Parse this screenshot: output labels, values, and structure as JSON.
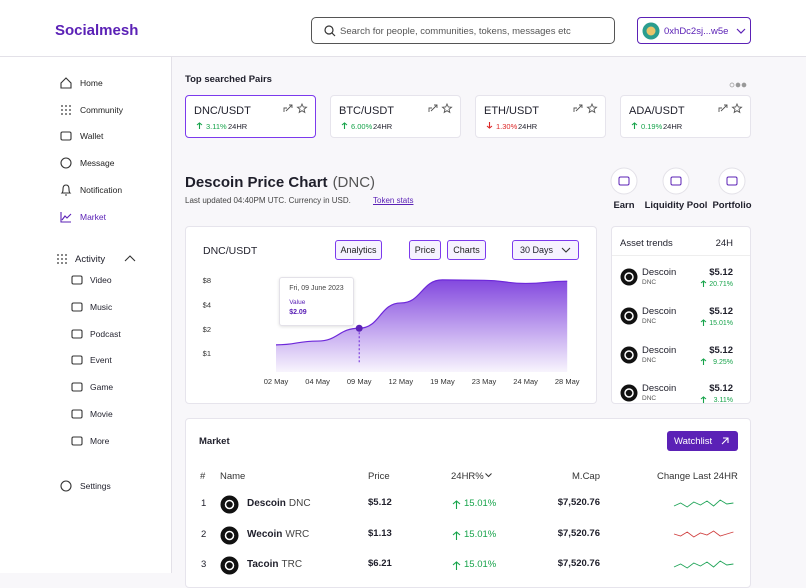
{
  "header": {
    "logo": "Socialmesh",
    "search_placeholder": "Search for people, communities, tokens, messages etc",
    "wallet": "0xhDc2sj...w5e"
  },
  "sidebar": {
    "nav": [
      "Home",
      "Community",
      "Wallet",
      "Message",
      "Notification",
      "Market"
    ],
    "activity": {
      "label": "Activity",
      "items": [
        "Video",
        "Music",
        "Podcast",
        "Event",
        "Game",
        "Movie",
        "More"
      ]
    },
    "settings": "Settings"
  },
  "top_pairs": {
    "title": "Top searched Pairs",
    "pairs": [
      {
        "name": "DNC/USDT",
        "change": "3.11%",
        "direction": "up",
        "period": "24HR"
      },
      {
        "name": "BTC/USDT",
        "change": "6.00%",
        "direction": "up",
        "period": "24HR"
      },
      {
        "name": "ETH/USDT",
        "change": "1.30%",
        "direction": "down",
        "period": "24HR"
      },
      {
        "name": "ADA/USDT",
        "change": "0.19%",
        "direction": "up",
        "period": "24HR"
      }
    ]
  },
  "price_header": {
    "title": "Descoin Price Chart",
    "ticker": "(DNC)",
    "updated": "Last updated 04:40PM UTC. Currency in USD.",
    "link": "Token stats",
    "actions": [
      "Earn",
      "Liquidity Pool",
      "Portfolio"
    ]
  },
  "chart_data": {
    "type": "area",
    "title": "DNC/USDT",
    "buttons": [
      "Analytics",
      "Price",
      "Charts"
    ],
    "range": "30 Days",
    "categories": [
      "02 May",
      "04 May",
      "09 May",
      "12 May",
      "19 May",
      "23 May",
      "24 May",
      "28 May"
    ],
    "values": [
      1.3,
      1.45,
      2.09,
      4.3,
      8.3,
      8.2,
      7.5,
      8
    ],
    "color": "#6d28d9",
    "ylim": [
      0.6,
      11
    ],
    "log_scale": true,
    "grid": false,
    "yticks": [
      {
        "value": 8,
        "label": "$8"
      },
      {
        "value": 4,
        "label": "$4"
      },
      {
        "value": 2,
        "label": "$2"
      },
      {
        "value": 1,
        "label": "$1"
      }
    ],
    "tooltip": {
      "date": "Fri, 09 June 2023",
      "label": "Value",
      "value": "$2.09"
    }
  },
  "asset_trends": {
    "title": "Asset trends",
    "period": "24H",
    "rows": [
      {
        "name": "Descoin",
        "ticker": "DNC",
        "price": "$5.12",
        "change": "20.71%"
      },
      {
        "name": "Descoin",
        "ticker": "DNC",
        "price": "$5.12",
        "change": "15.01%"
      },
      {
        "name": "Descoin",
        "ticker": "DNC",
        "price": "$5.12",
        "change": "9.25%"
      },
      {
        "name": "Descoin",
        "ticker": "DNC",
        "price": "$5.12",
        "change": "3.11%"
      }
    ]
  },
  "market": {
    "title": "Market",
    "button": "Watchlist",
    "columns": [
      "#",
      "Name",
      "Price",
      "24HR%",
      "M.Cap",
      "Change Last 24HR"
    ],
    "rows": [
      {
        "rank": "1",
        "name": "Descoin",
        "ticker": "DNC",
        "price": "$5.12",
        "change": "15.01%",
        "mcap": "$7,520.76",
        "trend": "up"
      },
      {
        "rank": "2",
        "name": "Wecoin",
        "ticker": "WRC",
        "price": "$1.13",
        "change": "15.01%",
        "mcap": "$7,520.76",
        "trend": "down"
      },
      {
        "rank": "3",
        "name": "Tacoin",
        "ticker": "TRC",
        "price": "$6.21",
        "change": "15.01%",
        "mcap": "$7,520.76",
        "trend": "up"
      }
    ]
  }
}
